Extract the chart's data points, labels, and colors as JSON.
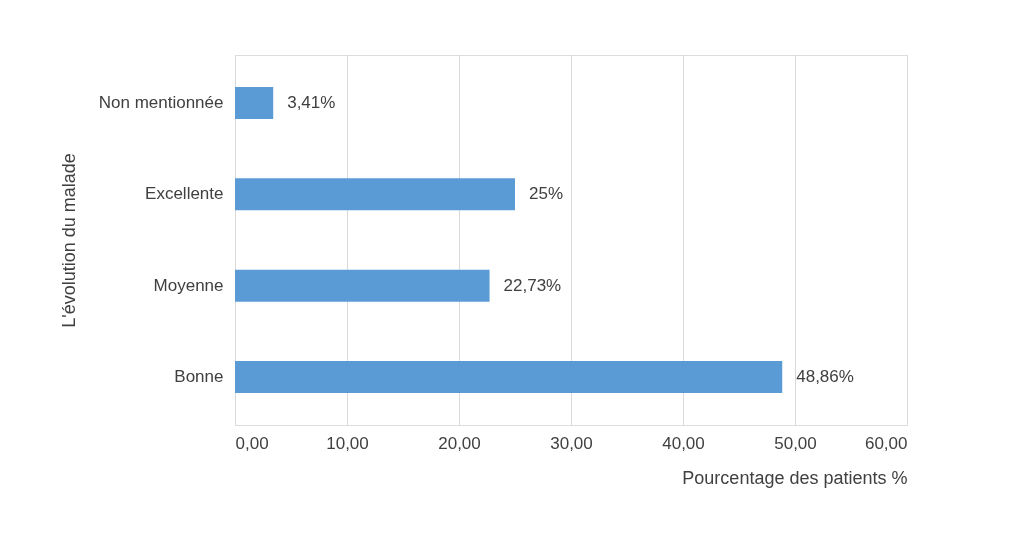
{
  "chart_data": {
    "type": "bar",
    "orientation": "horizontal",
    "categories": [
      "Non mentionnée",
      "Excellente",
      "Moyenne",
      "Bonne"
    ],
    "values": [
      3.41,
      25,
      22.73,
      48.86
    ],
    "value_labels": [
      "3,41%",
      "25%",
      "22,73%",
      "48,86%"
    ],
    "color": "#5b9bd5",
    "xlabel": "Pourcentage des patients %",
    "ylabel": "L'évolution du malade",
    "xlim": [
      0,
      60
    ],
    "xticks": [
      {
        "value": 0,
        "label": "0,00"
      },
      {
        "value": 10,
        "label": "10,00"
      },
      {
        "value": 20,
        "label": "20,00"
      },
      {
        "value": 30,
        "label": "30,00"
      },
      {
        "value": 40,
        "label": "40,00"
      },
      {
        "value": 50,
        "label": "50,00"
      },
      {
        "value": 60,
        "label": "60,00"
      }
    ],
    "grid": "x"
  }
}
